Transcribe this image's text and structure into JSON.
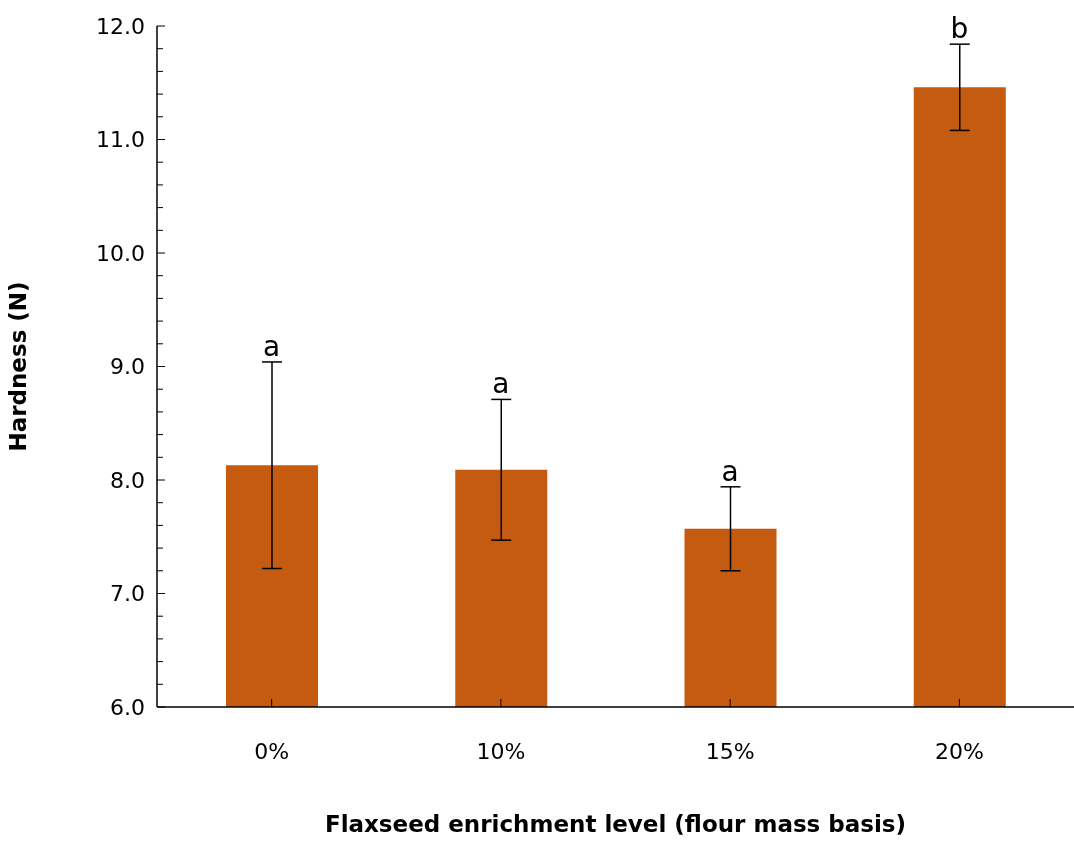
{
  "chart_data": {
    "type": "bar",
    "xlabel": "Flaxseed enrichment level (flour mass basis)",
    "ylabel": "Hardness (N)",
    "categories": [
      "0%",
      "10%",
      "15%",
      "20%"
    ],
    "values": [
      8.13,
      8.09,
      7.57,
      11.46
    ],
    "errors": [
      0.91,
      0.62,
      0.37,
      0.38
    ],
    "color": "#c55a11",
    "ylim": [
      6,
      12
    ],
    "yticks": [
      {
        "value": 6,
        "label": "6.0"
      },
      {
        "value": 6.2,
        "label": null
      },
      {
        "value": 6.4,
        "label": null
      },
      {
        "value": 6.6,
        "label": null
      },
      {
        "value": 6.8,
        "label": null
      },
      {
        "value": 7,
        "label": "7.0"
      },
      {
        "value": 7.2,
        "label": null
      },
      {
        "value": 7.4,
        "label": null
      },
      {
        "value": 7.6,
        "label": null
      },
      {
        "value": 7.8,
        "label": null
      },
      {
        "value": 8,
        "label": "8.0"
      },
      {
        "value": 8.2,
        "label": null
      },
      {
        "value": 8.4,
        "label": null
      },
      {
        "value": 8.6,
        "label": null
      },
      {
        "value": 8.8,
        "label": null
      },
      {
        "value": 9,
        "label": "9.0"
      },
      {
        "value": 9.2,
        "label": null
      },
      {
        "value": 9.4,
        "label": null
      },
      {
        "value": 9.6,
        "label": null
      },
      {
        "value": 9.8,
        "label": null
      },
      {
        "value": 10,
        "label": "10.0"
      },
      {
        "value": 10.2,
        "label": null
      },
      {
        "value": 10.4,
        "label": null
      },
      {
        "value": 10.6,
        "label": null
      },
      {
        "value": 10.8,
        "label": null
      },
      {
        "value": 11,
        "label": "11.0"
      },
      {
        "value": 11.2,
        "label": null
      },
      {
        "value": 11.4,
        "label": null
      },
      {
        "value": 11.6,
        "label": null
      },
      {
        "value": 11.8,
        "label": null
      },
      {
        "value": 12,
        "label": "12.0"
      }
    ],
    "annotations": [
      "a",
      "a",
      "a",
      "b"
    ],
    "grid": false,
    "legend": false
  }
}
